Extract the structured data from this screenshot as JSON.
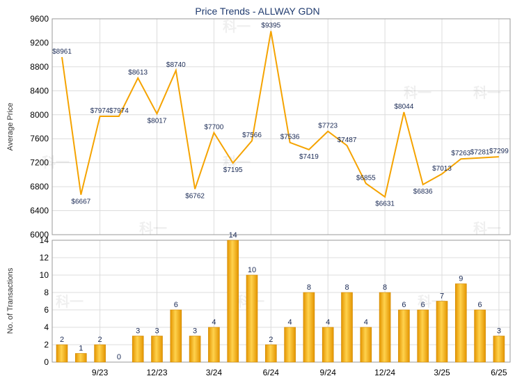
{
  "chart_data": [
    {
      "type": "line",
      "title": "Price Trends - ALLWAY GDN",
      "ylabel": "Average Price",
      "ylim": [
        6000,
        9600
      ],
      "yticks": [
        6000,
        6400,
        6800,
        7200,
        7600,
        8000,
        8400,
        8800,
        9200,
        9600
      ],
      "color": "#f5a300",
      "points": [
        {
          "i": 0,
          "label": "$8961",
          "value": 8961
        },
        {
          "i": 1,
          "label": "$6667",
          "value": 6667
        },
        {
          "i": 2,
          "label": "$7974",
          "value": 7974
        },
        {
          "i": 3,
          "label": "$7974",
          "value": 7974
        },
        {
          "i": 4,
          "label": "$8613",
          "value": 8613
        },
        {
          "i": 5,
          "label": "$8017",
          "value": 8017
        },
        {
          "i": 6,
          "label": "$8740",
          "value": 8740
        },
        {
          "i": 7,
          "label": "$6762",
          "value": 6762
        },
        {
          "i": 8,
          "label": "$7700",
          "value": 7700
        },
        {
          "i": 9,
          "label": "$7195",
          "value": 7195
        },
        {
          "i": 10,
          "label": "$7566",
          "value": 7566
        },
        {
          "i": 11,
          "label": "$9395",
          "value": 9395
        },
        {
          "i": 12,
          "label": "$7536",
          "value": 7536
        },
        {
          "i": 13,
          "label": "$7419",
          "value": 7419
        },
        {
          "i": 14,
          "label": "$7723",
          "value": 7723
        },
        {
          "i": 15,
          "label": "$7487",
          "value": 7487
        },
        {
          "i": 16,
          "label": "$6855",
          "value": 6855
        },
        {
          "i": 17,
          "label": "$6631",
          "value": 6631
        },
        {
          "i": 18,
          "label": "$8044",
          "value": 8044
        },
        {
          "i": 19,
          "label": "$6836",
          "value": 6836
        },
        {
          "i": 20,
          "label": "$7013",
          "value": 7013
        },
        {
          "i": 21,
          "label": "$7263",
          "value": 7263
        },
        {
          "i": 22,
          "label": "$7281",
          "value": 7281
        },
        {
          "i": 23,
          "label": "$7299",
          "value": 7299
        }
      ]
    },
    {
      "type": "bar",
      "ylabel": "No. of Transactions",
      "ylim": [
        0,
        14
      ],
      "yticks": [
        0,
        2,
        4,
        6,
        8,
        10,
        12,
        14
      ],
      "color": "#f2a900",
      "values": [
        2,
        1,
        2,
        0,
        3,
        3,
        6,
        3,
        4,
        14,
        10,
        2,
        4,
        8,
        4,
        8,
        4,
        8,
        6,
        6,
        7,
        9,
        6,
        3
      ],
      "value_labels": [
        "2",
        "1",
        "2",
        "0",
        "3",
        "3",
        "6",
        "3",
        "4",
        "14",
        "10",
        "2",
        "4",
        "8",
        "4",
        "8",
        "4",
        "8",
        "6",
        "6",
        "7",
        "9",
        "6",
        "3"
      ],
      "xticks": [
        {
          "at": 2,
          "label": "9/23"
        },
        {
          "at": 5,
          "label": "12/23"
        },
        {
          "at": 8,
          "label": "3/24"
        },
        {
          "at": 11,
          "label": "6/24"
        },
        {
          "at": 14,
          "label": "9/24"
        },
        {
          "at": 17,
          "label": "12/24"
        },
        {
          "at": 20,
          "label": "3/25"
        },
        {
          "at": 23,
          "label": "6/25"
        }
      ]
    }
  ],
  "watermark_text": "科一"
}
